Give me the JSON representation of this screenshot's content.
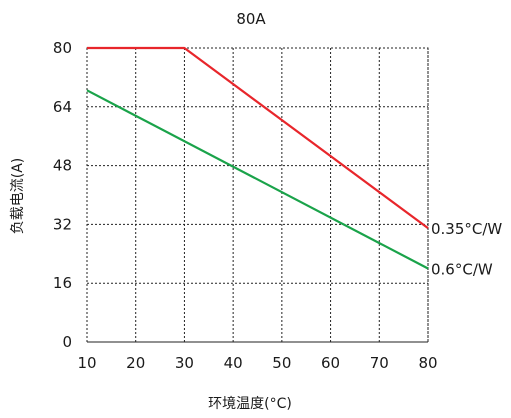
{
  "chart_data": {
    "type": "line",
    "title": "80A",
    "xlabel": "环境温度(°C)",
    "ylabel": "负载电流(A)",
    "xlim": [
      10,
      80
    ],
    "ylim": [
      0,
      80
    ],
    "xticks": [
      10,
      20,
      30,
      40,
      50,
      60,
      70,
      80
    ],
    "yticks": [
      0,
      16,
      32,
      48,
      64,
      80
    ],
    "grid": true,
    "grid_style": "dotted",
    "legend": "inline-right",
    "series": [
      {
        "name": "0.35°C/W",
        "color": "#e8262b",
        "points": [
          [
            10,
            80
          ],
          [
            30,
            80
          ],
          [
            80,
            31
          ]
        ]
      },
      {
        "name": "0.6°C/W",
        "color": "#1aa34a",
        "points": [
          [
            10,
            68.5
          ],
          [
            80,
            20
          ]
        ]
      }
    ]
  }
}
